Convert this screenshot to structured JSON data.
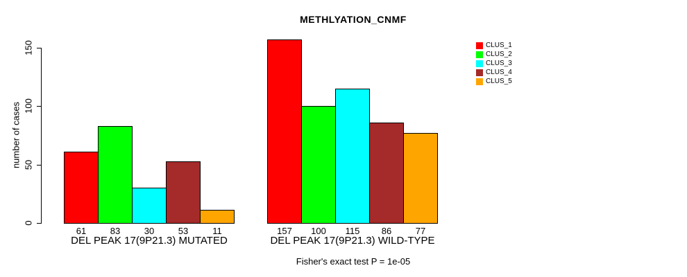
{
  "title": "METHLYATION_CNMF",
  "chart_data": {
    "type": "bar",
    "title": "METHLYATION_CNMF",
    "xlabel": "",
    "ylabel": "number of cases",
    "ylim": [
      0,
      160
    ],
    "yticks": [
      0,
      50,
      100,
      150
    ],
    "grid": false,
    "legend_position": "top-right",
    "categories": [
      "DEL PEAK 17(9P21.3) MUTATED",
      "DEL PEAK 17(9P21.3) WILD-TYPE"
    ],
    "series": [
      {
        "name": "CLUS_1",
        "color": "#FF0000",
        "values": [
          61,
          157
        ]
      },
      {
        "name": "CLUS_2",
        "color": "#00FF00",
        "values": [
          83,
          100
        ]
      },
      {
        "name": "CLUS_3",
        "color": "#00FFFF",
        "values": [
          30,
          115
        ]
      },
      {
        "name": "CLUS_4",
        "color": "#A52A2A",
        "values": [
          53,
          86
        ]
      },
      {
        "name": "CLUS_5",
        "color": "#FFA500",
        "values": [
          11,
          77
        ]
      }
    ],
    "bar_value_labels": [
      [
        61,
        83,
        30,
        53,
        11
      ],
      [
        157,
        100,
        115,
        86,
        77
      ]
    ],
    "annotation": "Fisher's exact test P = 1e-05"
  }
}
